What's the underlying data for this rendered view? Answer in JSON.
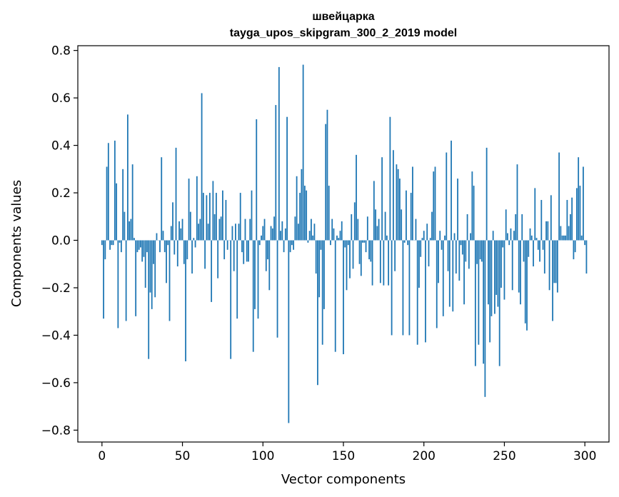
{
  "chart_data": {
    "type": "bar",
    "title": "швейцарка",
    "subtitle": "tayga_upos_skipgram_300_2_2019 model",
    "xlabel": "Vector components",
    "ylabel": "Components values",
    "xlim": [
      -15,
      315
    ],
    "ylim": [
      -0.85,
      0.82
    ],
    "xticks": [
      0,
      50,
      100,
      150,
      200,
      250,
      300
    ],
    "yticks": [
      0.8,
      0.6,
      0.4,
      0.2,
      0.0,
      -0.2,
      -0.4,
      -0.6,
      -0.8
    ],
    "ytick_labels": [
      "0.8",
      "0.6",
      "0.4",
      "0.2",
      "0.0",
      "−0.2",
      "−0.4",
      "−0.6",
      "−0.8"
    ],
    "grid": false,
    "bar_color": "#1f77b4",
    "values": [
      -0.02,
      -0.33,
      -0.08,
      0.31,
      0.41,
      -0.04,
      -0.02,
      -0.02,
      0.42,
      0.24,
      -0.37,
      -0.01,
      -0.05,
      0.3,
      0.12,
      -0.34,
      0.53,
      0.08,
      0.09,
      0.32,
      0.01,
      -0.32,
      -0.05,
      -0.04,
      -0.03,
      -0.09,
      -0.07,
      -0.2,
      -0.05,
      -0.5,
      -0.22,
      -0.29,
      -0.1,
      -0.24,
      0.03,
      0.0,
      -0.05,
      0.35,
      0.04,
      -0.05,
      -0.18,
      -0.02,
      -0.34,
      0.06,
      0.16,
      -0.06,
      0.39,
      -0.11,
      0.08,
      0.05,
      0.09,
      -0.1,
      -0.51,
      -0.08,
      0.26,
      0.12,
      -0.14,
      0.01,
      -0.03,
      0.27,
      0.07,
      0.09,
      0.62,
      0.2,
      -0.12,
      0.19,
      0.07,
      0.2,
      -0.26,
      0.25,
      0.11,
      0.2,
      -0.16,
      0.09,
      0.1,
      0.21,
      -0.08,
      0.17,
      -0.04,
      0.0,
      -0.5,
      0.06,
      -0.13,
      0.07,
      -0.33,
      0.07,
      0.2,
      -0.05,
      -0.1,
      0.09,
      -0.09,
      -0.09,
      0.09,
      0.21,
      -0.47,
      -0.29,
      0.51,
      -0.33,
      -0.02,
      0.02,
      0.06,
      0.09,
      -0.13,
      -0.08,
      -0.21,
      0.06,
      0.05,
      0.1,
      0.57,
      -0.41,
      0.73,
      0.04,
      0.08,
      -0.05,
      0.05,
      0.52,
      -0.77,
      -0.05,
      -0.02,
      -0.04,
      0.1,
      0.27,
      0.07,
      0.2,
      0.3,
      0.74,
      0.23,
      0.21,
      -0.01,
      0.04,
      0.09,
      0.02,
      0.07,
      -0.14,
      -0.61,
      -0.24,
      -0.04,
      -0.44,
      -0.29,
      0.49,
      0.55,
      0.23,
      -0.02,
      0.09,
      0.05,
      -0.47,
      0.02,
      0.01,
      0.04,
      0.08,
      -0.48,
      -0.03,
      -0.21,
      -0.02,
      -0.16,
      0.11,
      -0.12,
      0.16,
      0.36,
      0.09,
      -0.1,
      -0.15,
      -0.01,
      -0.01,
      -0.05,
      0.1,
      -0.08,
      -0.09,
      -0.19,
      0.25,
      0.13,
      0.06,
      0.09,
      -0.18,
      0.35,
      -0.19,
      0.12,
      0.02,
      -0.19,
      0.52,
      -0.4,
      0.38,
      -0.13,
      0.32,
      0.3,
      0.26,
      0.13,
      -0.4,
      -0.01,
      0.21,
      -0.02,
      -0.4,
      0.2,
      0.31,
      0.0,
      0.09,
      -0.44,
      -0.2,
      -0.07,
      0.01,
      0.04,
      -0.43,
      0.07,
      -0.11,
      0.01,
      0.12,
      0.29,
      0.31,
      -0.37,
      -0.18,
      0.04,
      -0.04,
      -0.32,
      0.02,
      0.37,
      -0.13,
      -0.28,
      0.42,
      -0.3,
      0.03,
      -0.14,
      0.26,
      -0.17,
      -0.02,
      -0.06,
      -0.27,
      -0.09,
      0.11,
      -0.12,
      0.03,
      0.29,
      0.23,
      -0.53,
      -0.1,
      -0.44,
      -0.08,
      -0.09,
      -0.52,
      -0.66,
      0.39,
      -0.27,
      -0.43,
      -0.32,
      0.04,
      -0.31,
      -0.23,
      -0.28,
      -0.53,
      -0.2,
      -0.03,
      -0.25,
      0.13,
      0.03,
      -0.02,
      0.05,
      -0.21,
      0.04,
      0.11,
      0.32,
      -0.22,
      -0.27,
      0.11,
      -0.09,
      -0.35,
      -0.38,
      -0.07,
      0.05,
      0.02,
      -0.11,
      0.22,
      0.01,
      -0.04,
      -0.09,
      0.17,
      -0.04,
      -0.14,
      0.08,
      0.08,
      -0.21,
      0.19,
      -0.34,
      -0.18,
      -0.18,
      -0.22,
      0.37,
      0.06,
      0.02,
      0.02,
      0.02,
      0.17,
      0.06,
      0.11,
      0.18,
      -0.08,
      -0.05,
      0.22,
      0.35,
      0.23,
      0.02,
      0.31,
      -0.02,
      -0.14
    ]
  }
}
